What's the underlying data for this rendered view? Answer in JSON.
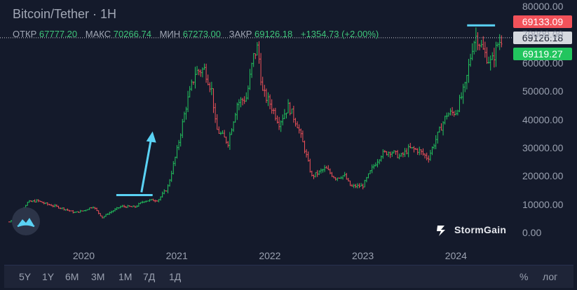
{
  "header": {
    "title": "Bitcoin/Tether · 1H",
    "ohlc": [
      {
        "label": "ОТКР",
        "value": "67777.20"
      },
      {
        "label": "МАКС",
        "value": "70266.74"
      },
      {
        "label": "МИН",
        "value": "67273.00"
      },
      {
        "label": "ЗАКР",
        "value": "69126.18"
      }
    ],
    "change": "+1354.73 (+2.00%)"
  },
  "price_tags": {
    "high": "69133.09",
    "close": "69126.18",
    "low": "69119.27"
  },
  "brand": {
    "name": "StormGain",
    "logo_icon": "stormgain-logo-icon",
    "circle_icon": "cloud-logo-icon"
  },
  "toolbar": {
    "ranges": [
      "5Y",
      "1Y",
      "6M",
      "3M",
      "1M",
      "7Д",
      "1Д"
    ],
    "percent_label": "%",
    "log_label": "лог"
  },
  "colors": {
    "background": "#141a2b",
    "up": "#22c55e",
    "down": "#f2525a",
    "annotation": "#5ad2f4"
  },
  "chart_data": {
    "type": "candlestick",
    "title": "Bitcoin/Tether · 1H",
    "x_ticks": [
      "2020",
      "2021",
      "2022",
      "2023",
      "2024"
    ],
    "y_ticks": [
      "0.00",
      "10000.00",
      "20000.00",
      "30000.00",
      "40000.00",
      "50000.00",
      "60000.00",
      "70000.00",
      "80000.00"
    ],
    "ylim": [
      0,
      80000
    ],
    "xlim": [
      2019.1,
      2024.6
    ],
    "grid": false,
    "series_points": [
      [
        2019.2,
        4000
      ],
      [
        2019.3,
        7000
      ],
      [
        2019.4,
        11000
      ],
      [
        2019.5,
        11500
      ],
      [
        2019.6,
        10300
      ],
      [
        2019.7,
        9500
      ],
      [
        2019.8,
        8500
      ],
      [
        2019.9,
        7300
      ],
      [
        2020.0,
        8000
      ],
      [
        2020.1,
        9500
      ],
      [
        2020.2,
        5500
      ],
      [
        2020.25,
        6800
      ],
      [
        2020.4,
        9500
      ],
      [
        2020.55,
        9300
      ],
      [
        2020.65,
        11500
      ],
      [
        2020.8,
        11800
      ],
      [
        2020.9,
        16000
      ],
      [
        2021.0,
        29000
      ],
      [
        2021.1,
        45000
      ],
      [
        2021.2,
        57000
      ],
      [
        2021.3,
        58000
      ],
      [
        2021.38,
        50000
      ],
      [
        2021.42,
        37000
      ],
      [
        2021.5,
        34000
      ],
      [
        2021.55,
        32000
      ],
      [
        2021.65,
        46000
      ],
      [
        2021.75,
        48000
      ],
      [
        2021.82,
        62000
      ],
      [
        2021.87,
        66000
      ],
      [
        2021.92,
        50000
      ],
      [
        2022.0,
        46000
      ],
      [
        2022.1,
        39000
      ],
      [
        2022.2,
        45000
      ],
      [
        2022.3,
        38000
      ],
      [
        2022.38,
        29000
      ],
      [
        2022.45,
        20000
      ],
      [
        2022.5,
        21000
      ],
      [
        2022.6,
        23000
      ],
      [
        2022.7,
        19500
      ],
      [
        2022.8,
        20500
      ],
      [
        2022.87,
        16500
      ],
      [
        2023.0,
        16800
      ],
      [
        2023.1,
        23000
      ],
      [
        2023.2,
        28000
      ],
      [
        2023.3,
        29000
      ],
      [
        2023.4,
        27000
      ],
      [
        2023.5,
        30000
      ],
      [
        2023.6,
        29300
      ],
      [
        2023.7,
        26500
      ],
      [
        2023.8,
        34500
      ],
      [
        2023.9,
        42000
      ],
      [
        2024.0,
        43000
      ],
      [
        2024.1,
        52000
      ],
      [
        2024.18,
        67000
      ],
      [
        2024.22,
        70000
      ],
      [
        2024.3,
        64000
      ],
      [
        2024.38,
        60000
      ],
      [
        2024.45,
        67000
      ],
      [
        2024.5,
        69126
      ]
    ],
    "annotations": {
      "flat_line_2020": {
        "x_start": 2020.35,
        "x_end": 2020.74,
        "y": 13500
      },
      "arrow": {
        "x_from": 2020.62,
        "y_from": 14500,
        "x_to": 2020.74,
        "y_to": 36000
      },
      "top_line": {
        "x_start": 2024.12,
        "x_end": 2024.42,
        "y": 73500
      },
      "close_line": {
        "y": 69126
      }
    }
  }
}
